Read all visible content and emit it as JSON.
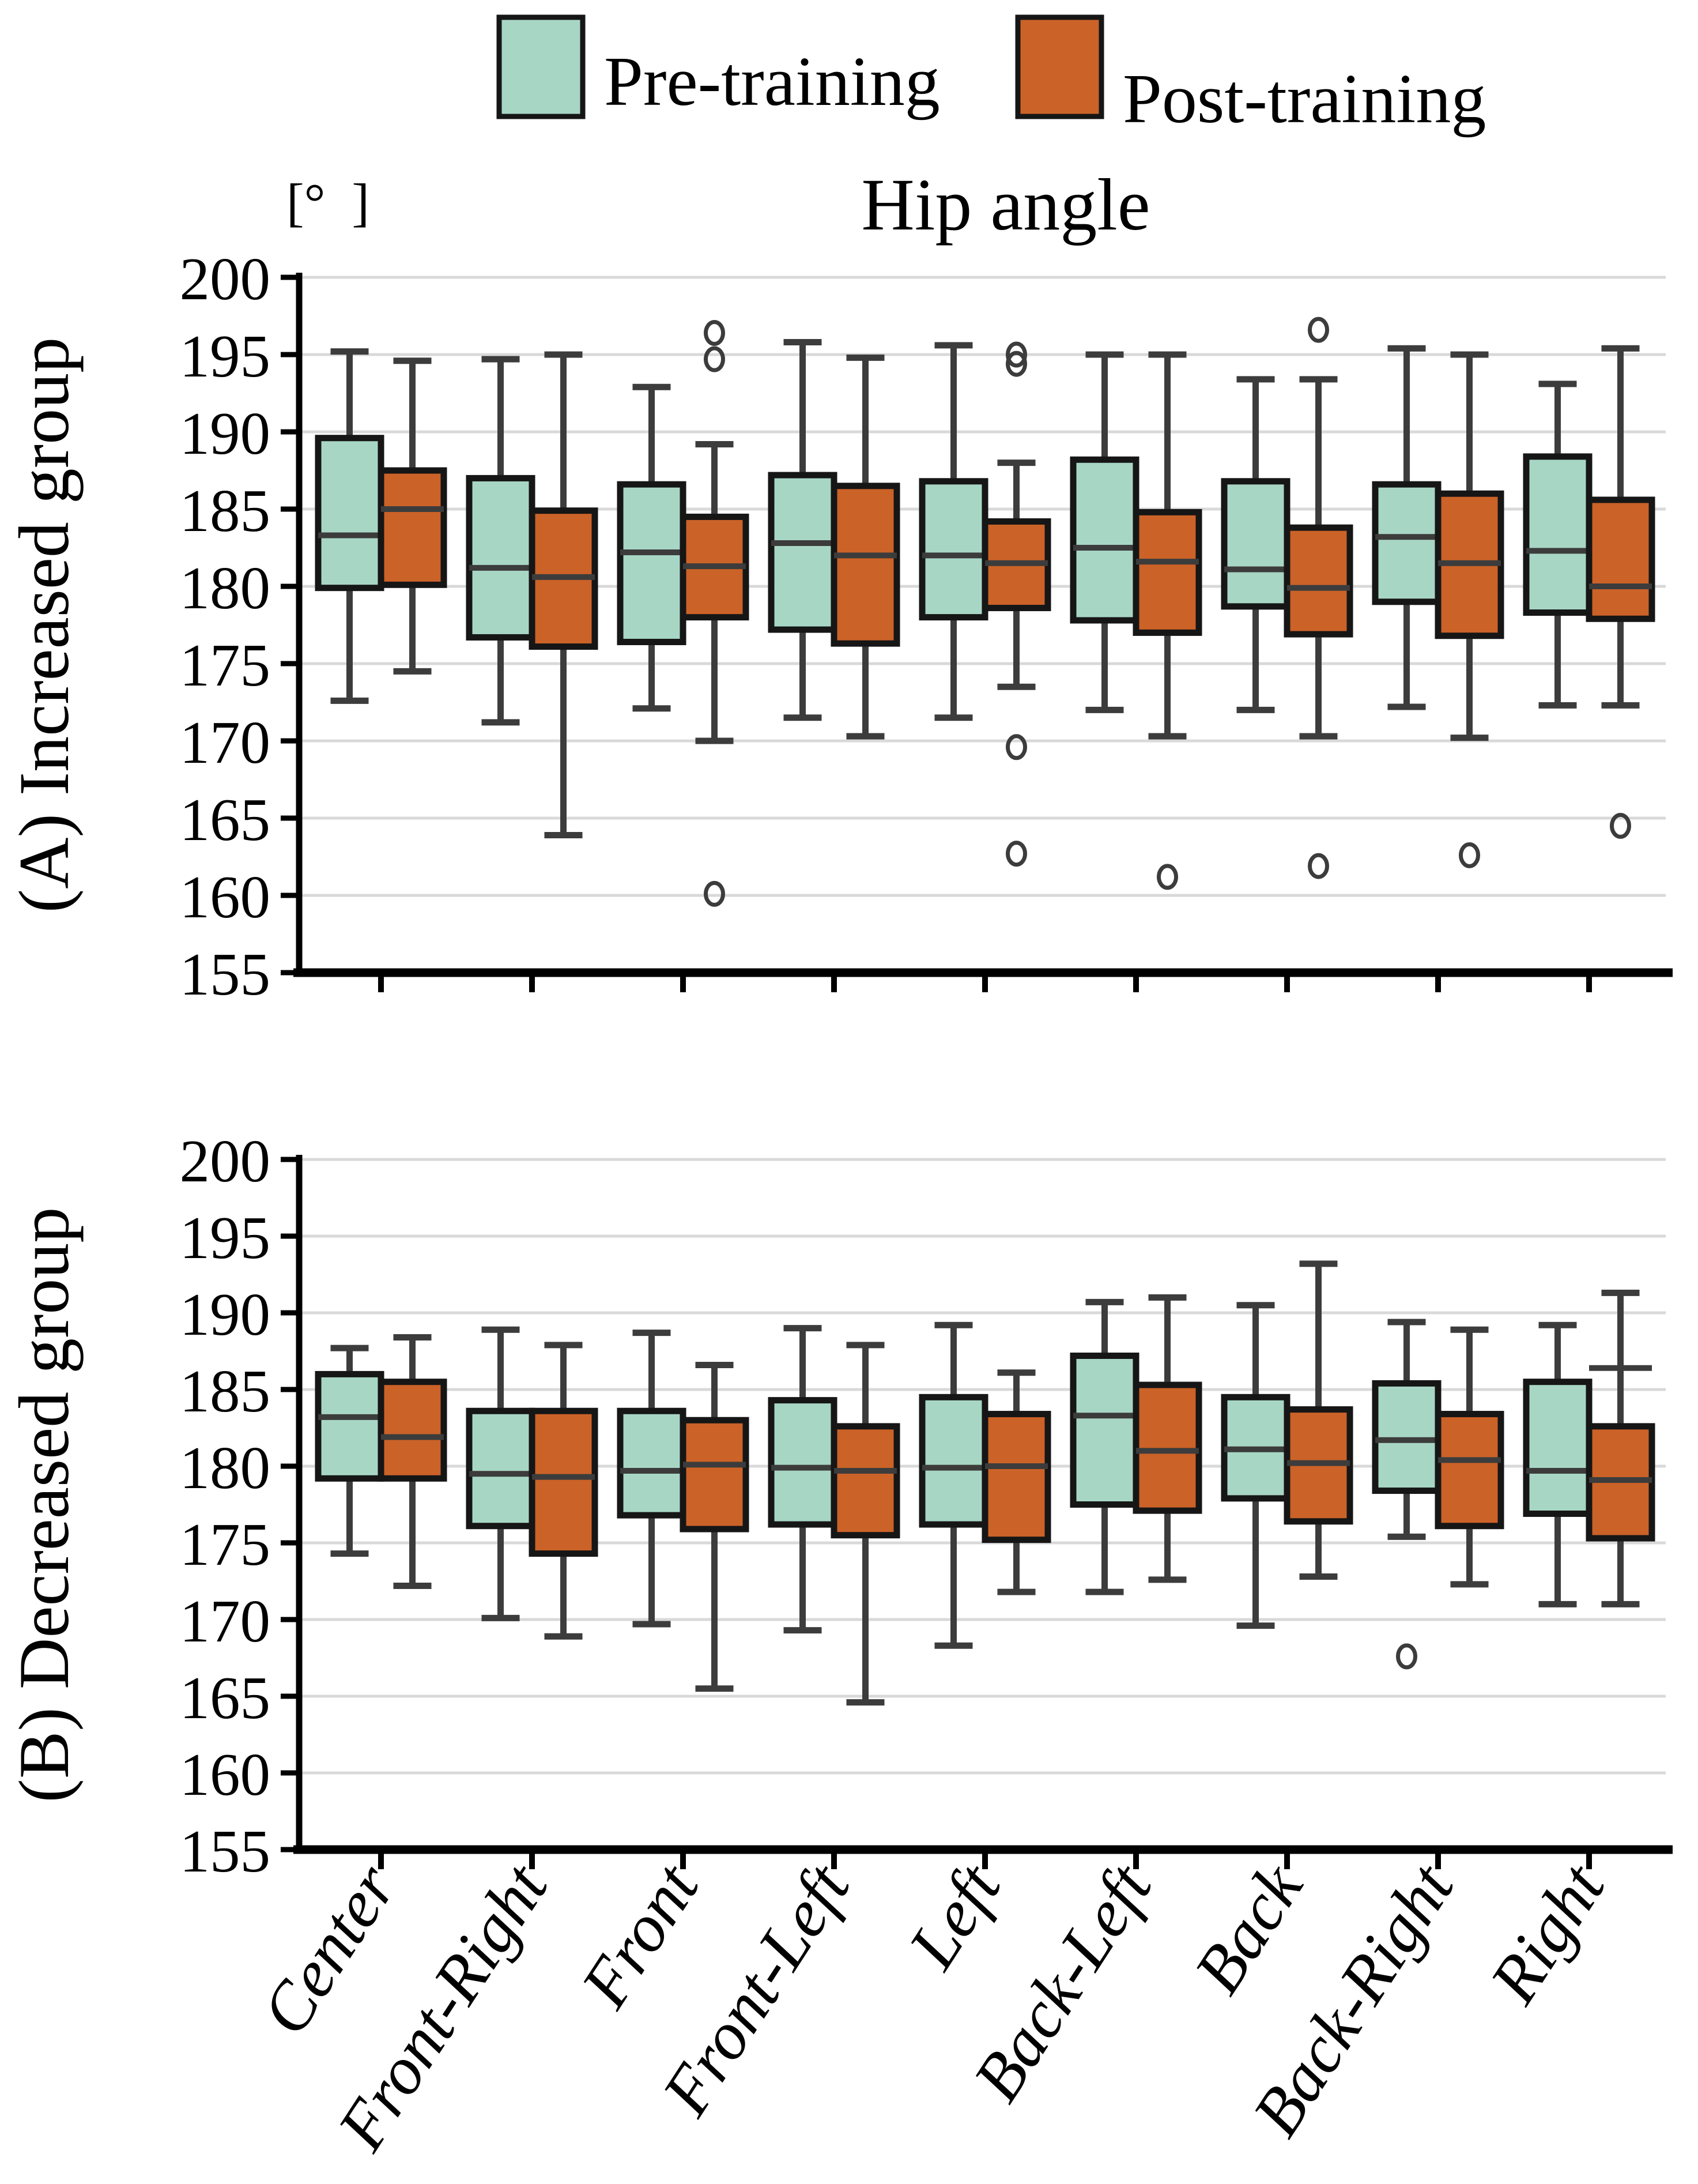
{
  "title": "Hip angle",
  "chart_data": {
    "type": "boxplot",
    "title": "Hip angle",
    "unit_label": "[° ]",
    "legend": [
      {
        "label": "Pre-training",
        "color": "#a8d6c5"
      },
      {
        "label": "Post-training",
        "color": "#cb6228"
      }
    ],
    "categories": [
      "Center",
      "Front-Right",
      "Front",
      "Front-Left",
      "Left",
      "Back-Left",
      "Back",
      "Back-Right",
      "Right"
    ],
    "ylim": [
      155,
      200
    ],
    "yticks": [
      200,
      195,
      190,
      185,
      180,
      175,
      170,
      165,
      160,
      155
    ],
    "grid": true,
    "legend_position": "top",
    "colors": {
      "pre_fill": "#a8d6c5",
      "post_fill": "#cb6228",
      "box_stroke": "#161616",
      "whisker": "#3c3c3c",
      "grid": "#d9d9d9",
      "axis": "#000000"
    },
    "panels": [
      {
        "id": "A",
        "ylabel": "(A) Increased group",
        "pre": [
          {
            "lo": 172.6,
            "q1": 179.9,
            "med": 183.3,
            "q3": 189.6,
            "hi": 195.2,
            "outliers": []
          },
          {
            "lo": 171.2,
            "q1": 176.7,
            "med": 181.2,
            "q3": 187.0,
            "hi": 194.7,
            "outliers": []
          },
          {
            "lo": 172.1,
            "q1": 176.4,
            "med": 182.2,
            "q3": 186.6,
            "hi": 192.9,
            "outliers": []
          },
          {
            "lo": 171.5,
            "q1": 177.2,
            "med": 182.8,
            "q3": 187.2,
            "hi": 195.8,
            "outliers": []
          },
          {
            "lo": 171.5,
            "q1": 178.0,
            "med": 182.0,
            "q3": 186.8,
            "hi": 195.6,
            "outliers": []
          },
          {
            "lo": 172.0,
            "q1": 177.8,
            "med": 182.5,
            "q3": 188.2,
            "hi": 195.0,
            "outliers": []
          },
          {
            "lo": 172.0,
            "q1": 178.7,
            "med": 181.1,
            "q3": 186.8,
            "hi": 193.4,
            "outliers": []
          },
          {
            "lo": 172.2,
            "q1": 179.0,
            "med": 183.2,
            "q3": 186.6,
            "hi": 195.4,
            "outliers": []
          },
          {
            "lo": 172.3,
            "q1": 178.3,
            "med": 182.3,
            "q3": 188.4,
            "hi": 193.1,
            "outliers": []
          }
        ],
        "post": [
          {
            "lo": 174.5,
            "q1": 180.1,
            "med": 185.0,
            "q3": 187.5,
            "hi": 194.6,
            "outliers": []
          },
          {
            "lo": 163.9,
            "q1": 176.1,
            "med": 180.6,
            "q3": 184.9,
            "hi": 195.0,
            "outliers": []
          },
          {
            "lo": 170.0,
            "q1": 178.0,
            "med": 181.3,
            "q3": 184.5,
            "hi": 189.2,
            "outliers": [
              196.4,
              194.7,
              160.1
            ]
          },
          {
            "lo": 170.3,
            "q1": 176.3,
            "med": 182.0,
            "q3": 186.5,
            "hi": 194.8,
            "outliers": []
          },
          {
            "lo": 173.5,
            "q1": 178.6,
            "med": 181.5,
            "q3": 184.2,
            "hi": 188.0,
            "outliers": [
              195.0,
              194.4,
              169.6,
              162.7
            ]
          },
          {
            "lo": 170.3,
            "q1": 177.0,
            "med": 181.6,
            "q3": 184.8,
            "hi": 195.0,
            "outliers": [
              161.2
            ]
          },
          {
            "lo": 170.3,
            "q1": 176.9,
            "med": 179.9,
            "q3": 183.8,
            "hi": 193.4,
            "outliers": [
              196.6,
              161.9
            ]
          },
          {
            "lo": 170.2,
            "q1": 176.8,
            "med": 181.5,
            "q3": 186.0,
            "hi": 195.0,
            "outliers": [
              162.6
            ]
          },
          {
            "lo": 172.3,
            "q1": 177.9,
            "med": 180.0,
            "q3": 185.6,
            "hi": 195.4,
            "outliers": [
              164.5
            ]
          }
        ]
      },
      {
        "id": "B",
        "ylabel": "(B) Decreased group",
        "pre": [
          {
            "lo": 174.3,
            "q1": 179.2,
            "med": 183.2,
            "q3": 186.0,
            "hi": 187.7,
            "outliers": []
          },
          {
            "lo": 170.1,
            "q1": 176.1,
            "med": 179.5,
            "q3": 183.6,
            "hi": 188.9,
            "outliers": []
          },
          {
            "lo": 169.7,
            "q1": 176.8,
            "med": 179.7,
            "q3": 183.6,
            "hi": 188.7,
            "outliers": []
          },
          {
            "lo": 169.3,
            "q1": 176.2,
            "med": 179.9,
            "q3": 184.3,
            "hi": 189.0,
            "outliers": []
          },
          {
            "lo": 168.3,
            "q1": 176.2,
            "med": 179.9,
            "q3": 184.5,
            "hi": 189.2,
            "outliers": []
          },
          {
            "lo": 171.8,
            "q1": 177.5,
            "med": 183.3,
            "q3": 187.2,
            "hi": 190.7,
            "outliers": []
          },
          {
            "lo": 169.6,
            "q1": 177.9,
            "med": 181.1,
            "q3": 184.5,
            "hi": 190.5,
            "outliers": []
          },
          {
            "lo": 175.4,
            "q1": 178.4,
            "med": 181.7,
            "q3": 185.4,
            "hi": 189.4,
            "outliers": [
              167.6
            ]
          },
          {
            "lo": 171.0,
            "q1": 176.9,
            "med": 179.7,
            "q3": 185.5,
            "hi": 189.2,
            "outliers": []
          }
        ],
        "post": [
          {
            "lo": 172.2,
            "q1": 179.2,
            "med": 181.9,
            "q3": 185.5,
            "hi": 188.4,
            "outliers": []
          },
          {
            "lo": 168.9,
            "q1": 174.3,
            "med": 179.3,
            "q3": 183.6,
            "hi": 187.9,
            "outliers": []
          },
          {
            "lo": 165.5,
            "q1": 175.9,
            "med": 180.1,
            "q3": 183.0,
            "hi": 186.6,
            "outliers": []
          },
          {
            "lo": 164.6,
            "q1": 175.5,
            "med": 179.7,
            "q3": 182.6,
            "hi": 187.9,
            "outliers": []
          },
          {
            "lo": 171.8,
            "q1": 175.2,
            "med": 180.0,
            "q3": 183.4,
            "hi": 186.1,
            "outliers": []
          },
          {
            "lo": 172.6,
            "q1": 177.1,
            "med": 181.0,
            "q3": 185.3,
            "hi": 191.0,
            "outliers": []
          },
          {
            "lo": 172.8,
            "q1": 176.4,
            "med": 180.2,
            "q3": 183.7,
            "hi": 193.2,
            "outliers": []
          },
          {
            "lo": 172.3,
            "q1": 176.1,
            "med": 180.4,
            "q3": 183.4,
            "hi": 188.9,
            "outliers": []
          },
          {
            "lo": 171.0,
            "q1": 175.3,
            "med": 179.1,
            "q3": 182.6,
            "hi": 191.3,
            "outliers": [],
            "extra_cap": 186.4
          }
        ]
      }
    ]
  }
}
